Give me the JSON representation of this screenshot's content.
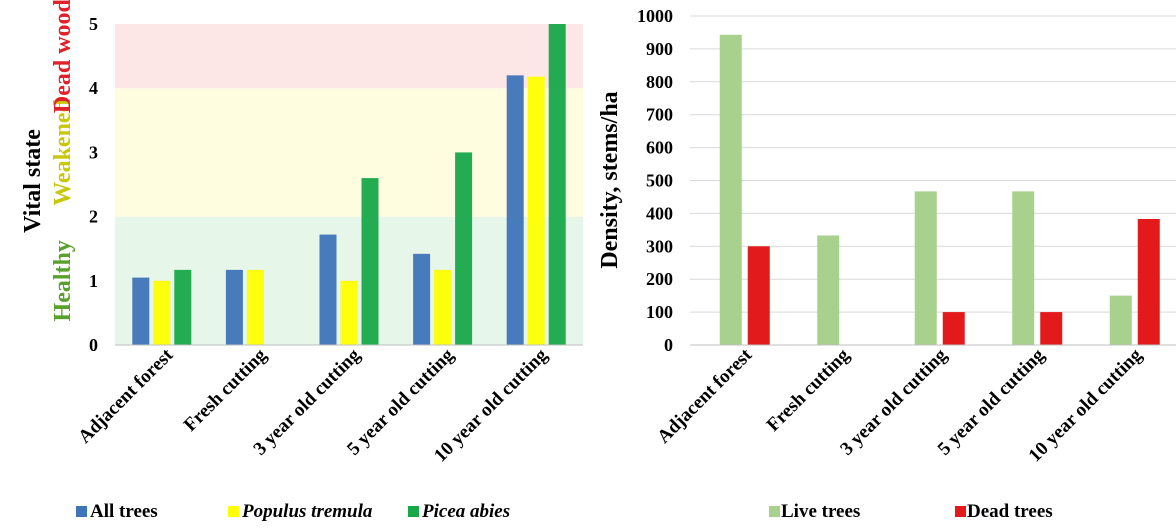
{
  "chart_data": [
    {
      "type": "bar",
      "categories": [
        "Adjacent forest",
        "Fresh cutting",
        "3 year old cutting",
        "5 year old cutting",
        "10 year old cutting"
      ],
      "series": [
        {
          "name": "All trees",
          "color": "#3f74b8",
          "values": [
            1.05,
            1.17,
            1.72,
            1.42,
            4.2
          ]
        },
        {
          "name": "Populus tremula",
          "color": "#ffff00",
          "values": [
            1.0,
            1.17,
            1.0,
            1.17,
            4.18
          ]
        },
        {
          "name": "Picea abies",
          "color": "#18a84a",
          "values": [
            1.17,
            null,
            2.6,
            3.0,
            5.0
          ]
        }
      ],
      "ylabel": "Vital state",
      "ylim": [
        0,
        5
      ],
      "yticks": [
        "0",
        "1",
        "2",
        "3",
        "4",
        "5"
      ],
      "bands": [
        {
          "label": "Healthy",
          "from": 0,
          "to": 2,
          "fill": "#e6f6e8",
          "text_color": "#5aa02c"
        },
        {
          "label": "Weakened",
          "from": 2,
          "to": 4,
          "fill": "#fffde0",
          "text_color": "#c9c70a"
        },
        {
          "label": "Dead wood",
          "from": 4,
          "to": 5,
          "fill": "#fde6e6",
          "text_color": "#e0202a"
        }
      ],
      "legend_position": "bottom"
    },
    {
      "type": "bar",
      "categories": [
        "Adjacent forest",
        "Fresh cutting",
        "3 year old cutting",
        "5 year old cutting",
        "10 year old cutting"
      ],
      "series": [
        {
          "name": "Live trees",
          "color": "#a9d18e",
          "values": [
            943,
            333,
            467,
            467,
            150
          ]
        },
        {
          "name": "Dead trees",
          "color": "#e31a1c",
          "values": [
            300,
            null,
            100,
            100,
            383
          ]
        }
      ],
      "ylabel": "Density, stems/ha",
      "ylim": [
        0,
        1000
      ],
      "yticks": [
        "0",
        "100",
        "200",
        "300",
        "400",
        "500",
        "600",
        "700",
        "800",
        "900",
        "1000"
      ],
      "legend_position": "bottom"
    }
  ]
}
